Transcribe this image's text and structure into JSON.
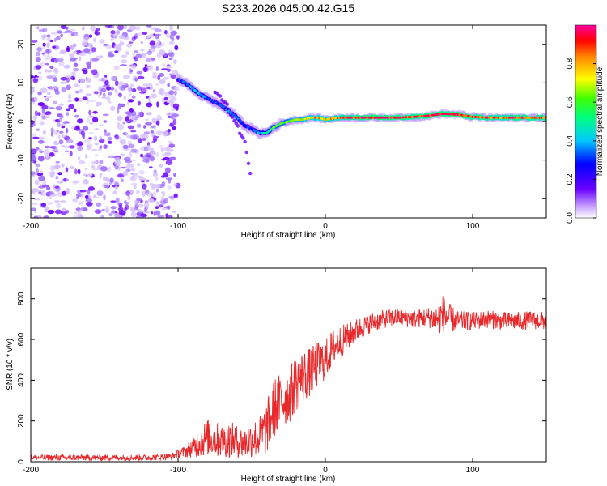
{
  "title": "S233.2026.045.00.42.G15",
  "colors": {
    "snr_line": "#e8282a",
    "ridge_low": "#6a00ff",
    "noise": "#8a3cff"
  },
  "chart_data": [
    {
      "type": "heatmap",
      "name": "spectrogram",
      "xlabel": "Height of straight line (km)",
      "ylabel": "Frequency (Hz)",
      "xlim": [
        -200,
        150
      ],
      "ylim": [
        -25,
        25
      ],
      "x_ticks": [
        -200,
        -100,
        0,
        100
      ],
      "y_ticks": [
        -20,
        -10,
        0,
        10,
        20
      ],
      "colorbar": {
        "label": "Normalized spectral amplitude",
        "range": [
          0,
          1
        ],
        "ticks": [
          "0.0",
          "0.2",
          "0.4",
          "0.6",
          "0.8"
        ],
        "colormap": "rainbow (violet low → red high, magenta top)"
      },
      "noise_region_x": [
        -200,
        -100
      ],
      "ridge": {
        "x": [
          -100,
          -95,
          -90,
          -85,
          -80,
          -75,
          -70,
          -65,
          -60,
          -55,
          -50,
          -45,
          -40,
          -35,
          -30,
          -25,
          -20,
          -15,
          -10,
          -5,
          0,
          5,
          10,
          20,
          30,
          40,
          50,
          60,
          70,
          80,
          90,
          100,
          110,
          120,
          130,
          140,
          150
        ],
        "frequency_hz": [
          11,
          10,
          8.5,
          7,
          6,
          5,
          4,
          2.5,
          1,
          -1,
          -2,
          -3,
          -3,
          -1.5,
          -0.5,
          0,
          0.5,
          0.5,
          1,
          1,
          0.5,
          0.8,
          1,
          1,
          1,
          1,
          1,
          1.2,
          1.5,
          2,
          1.8,
          1.2,
          1,
          1,
          1,
          1,
          1
        ],
        "amplitude": [
          0.3,
          0.35,
          0.4,
          0.4,
          0.35,
          0.3,
          0.3,
          0.35,
          0.35,
          0.3,
          0.3,
          0.4,
          0.5,
          0.6,
          0.6,
          0.65,
          0.7,
          0.7,
          0.75,
          0.8,
          0.75,
          0.8,
          0.85,
          0.9,
          0.95,
          0.95,
          0.95,
          0.9,
          0.95,
          0.95,
          0.95,
          0.9,
          0.9,
          0.85,
          0.9,
          0.9,
          0.9
        ]
      },
      "secondary_branch": {
        "x": [
          -75,
          -65,
          -55,
          -50
        ],
        "frequency_hz": [
          8,
          3,
          -5,
          -15
        ]
      }
    },
    {
      "type": "line",
      "name": "snr",
      "xlabel": "Height of straight line (km)",
      "ylabel": "SNR (10 * v/v)",
      "xlim": [
        -200,
        150
      ],
      "ylim": [
        0,
        950
      ],
      "x_ticks": [
        -200,
        -100,
        0,
        100
      ],
      "y_ticks": [
        0,
        200,
        400,
        600,
        800
      ],
      "series": [
        {
          "name": "SNR",
          "x": [
            -200,
            -180,
            -160,
            -140,
            -120,
            -105,
            -95,
            -90,
            -85,
            -80,
            -75,
            -70,
            -65,
            -60,
            -55,
            -50,
            -45,
            -40,
            -35,
            -30,
            -25,
            -20,
            -15,
            -10,
            -5,
            0,
            5,
            10,
            15,
            20,
            25,
            30,
            40,
            50,
            60,
            70,
            75,
            80,
            85,
            90,
            100,
            110,
            120,
            130,
            140,
            150
          ],
          "mean": [
            20,
            20,
            20,
            20,
            20,
            25,
            50,
            70,
            100,
            120,
            110,
            100,
            110,
            100,
            90,
            110,
            120,
            160,
            260,
            300,
            320,
            380,
            420,
            440,
            480,
            500,
            560,
            590,
            610,
            640,
            660,
            680,
            700,
            710,
            700,
            710,
            700,
            720,
            700,
            690,
            690,
            700,
            690,
            690,
            695,
            690
          ],
          "noise_amp": [
            15,
            15,
            15,
            15,
            15,
            15,
            30,
            50,
            80,
            90,
            90,
            80,
            90,
            80,
            80,
            90,
            100,
            130,
            150,
            140,
            140,
            140,
            130,
            120,
            110,
            100,
            90,
            80,
            70,
            60,
            55,
            50,
            45,
            45,
            45,
            50,
            70,
            100,
            70,
            50,
            45,
            45,
            45,
            45,
            45,
            45
          ]
        }
      ]
    }
  ]
}
